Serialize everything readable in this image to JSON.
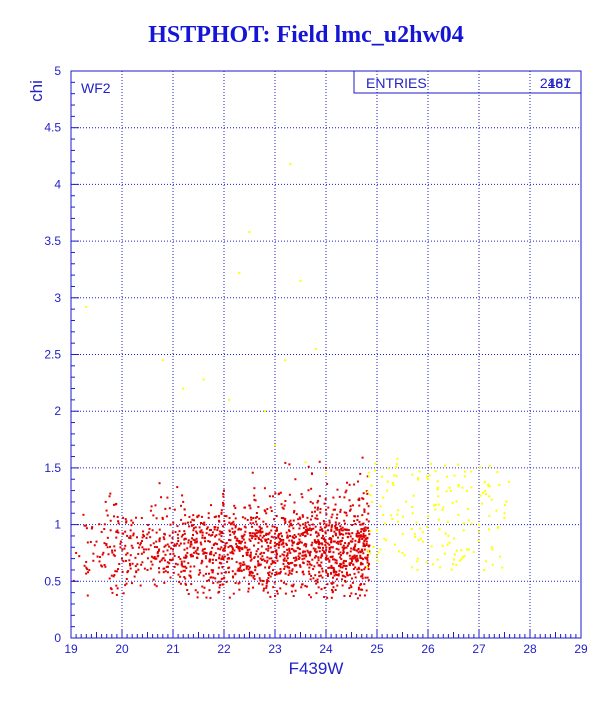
{
  "chart_data": {
    "type": "scatter",
    "title": "HSTPHOT: Field lmc_u2hw04",
    "xlabel": "F439W",
    "ylabel": "chi",
    "xlim": [
      19,
      29
    ],
    "ylim": [
      0,
      5
    ],
    "xticks": [
      "19",
      "20",
      "21",
      "22",
      "23",
      "24",
      "25",
      "26",
      "27",
      "28",
      "29"
    ],
    "yticks": [
      "0",
      "0.5",
      "1",
      "1.5",
      "2",
      "2.5",
      "3",
      "3.5",
      "4",
      "4.5",
      "5"
    ],
    "grid": true,
    "panel_label": "WF2",
    "stats_box": {
      "label": "ENTRIES",
      "value": "2461",
      "overprint_value": "187"
    },
    "series": [
      {
        "color": "#e00000",
        "approx_count": 2461,
        "points": [
          [
            19.1,
            0.75
          ],
          [
            19.3,
            0.62
          ],
          [
            19.5,
            0.85
          ],
          [
            19.8,
            0.55
          ],
          [
            19.9,
            0.38
          ],
          [
            20.0,
            0.7
          ],
          [
            20.1,
            0.9
          ],
          [
            20.3,
            0.65
          ],
          [
            20.4,
            0.8
          ],
          [
            20.5,
            0.6
          ],
          [
            20.6,
            0.95
          ],
          [
            20.7,
            0.72
          ],
          [
            20.8,
            1.05
          ],
          [
            20.9,
            0.58
          ],
          [
            21.0,
            0.78
          ],
          [
            21.1,
            0.88
          ],
          [
            21.2,
            1.2
          ],
          [
            21.3,
            0.66
          ],
          [
            21.4,
            0.95
          ],
          [
            21.5,
            0.74
          ],
          [
            21.6,
            0.55
          ],
          [
            21.7,
            1.1
          ],
          [
            21.8,
            0.82
          ],
          [
            21.9,
            0.62
          ],
          [
            22.0,
            1.3
          ],
          [
            22.1,
            0.7
          ],
          [
            22.2,
            0.92
          ],
          [
            22.3,
            0.6
          ],
          [
            22.4,
            1.15
          ],
          [
            22.5,
            0.78
          ],
          [
            22.6,
            0.52
          ],
          [
            22.7,
            0.98
          ],
          [
            22.8,
            0.68
          ],
          [
            22.9,
            1.25
          ],
          [
            23.0,
            0.84
          ],
          [
            23.1,
            0.57
          ],
          [
            23.2,
            1.05
          ],
          [
            23.3,
            0.75
          ],
          [
            23.4,
            1.4
          ],
          [
            23.5,
            0.63
          ],
          [
            23.6,
            0.9
          ],
          [
            23.7,
            1.2
          ],
          [
            23.8,
            0.72
          ],
          [
            23.9,
            0.55
          ],
          [
            24.0,
            1.5
          ],
          [
            24.1,
            0.8
          ],
          [
            24.2,
            1.0
          ],
          [
            24.3,
            0.65
          ],
          [
            24.4,
            1.3
          ],
          [
            24.5,
            0.7
          ],
          [
            24.6,
            0.9
          ],
          [
            24.7,
            0.6
          ],
          [
            24.8,
            0.85
          ]
        ]
      },
      {
        "color": "#ffff00",
        "approx_count": 187,
        "points": [
          [
            19.3,
            2.92
          ],
          [
            20.8,
            2.45
          ],
          [
            21.2,
            2.2
          ],
          [
            21.6,
            2.28
          ],
          [
            22.1,
            2.1
          ],
          [
            22.3,
            3.22
          ],
          [
            22.5,
            3.58
          ],
          [
            22.8,
            2.0
          ],
          [
            23.2,
            2.45
          ],
          [
            23.3,
            4.18
          ],
          [
            23.5,
            3.15
          ],
          [
            23.8,
            2.55
          ],
          [
            23.0,
            1.7
          ],
          [
            23.6,
            1.55
          ],
          [
            24.0,
            1.45
          ],
          [
            24.9,
            1.2
          ],
          [
            25.0,
            0.95
          ],
          [
            25.2,
            1.3
          ],
          [
            25.4,
            1.58
          ],
          [
            25.5,
            0.75
          ],
          [
            25.7,
            1.1
          ],
          [
            25.9,
            0.85
          ],
          [
            26.0,
            1.4
          ],
          [
            26.1,
            0.65
          ],
          [
            26.3,
            1.15
          ],
          [
            26.4,
            0.9
          ],
          [
            26.6,
            1.35
          ],
          [
            26.8,
            0.78
          ],
          [
            27.0,
            1.0
          ],
          [
            27.2,
            1.25
          ],
          [
            27.4,
            1.35
          ],
          [
            27.5,
            1.1
          ],
          [
            26.2,
            1.25
          ],
          [
            25.3,
            1.05
          ],
          [
            26.7,
            0.95
          ],
          [
            25.8,
            0.7
          ],
          [
            27.1,
            0.6
          ]
        ]
      }
    ]
  }
}
